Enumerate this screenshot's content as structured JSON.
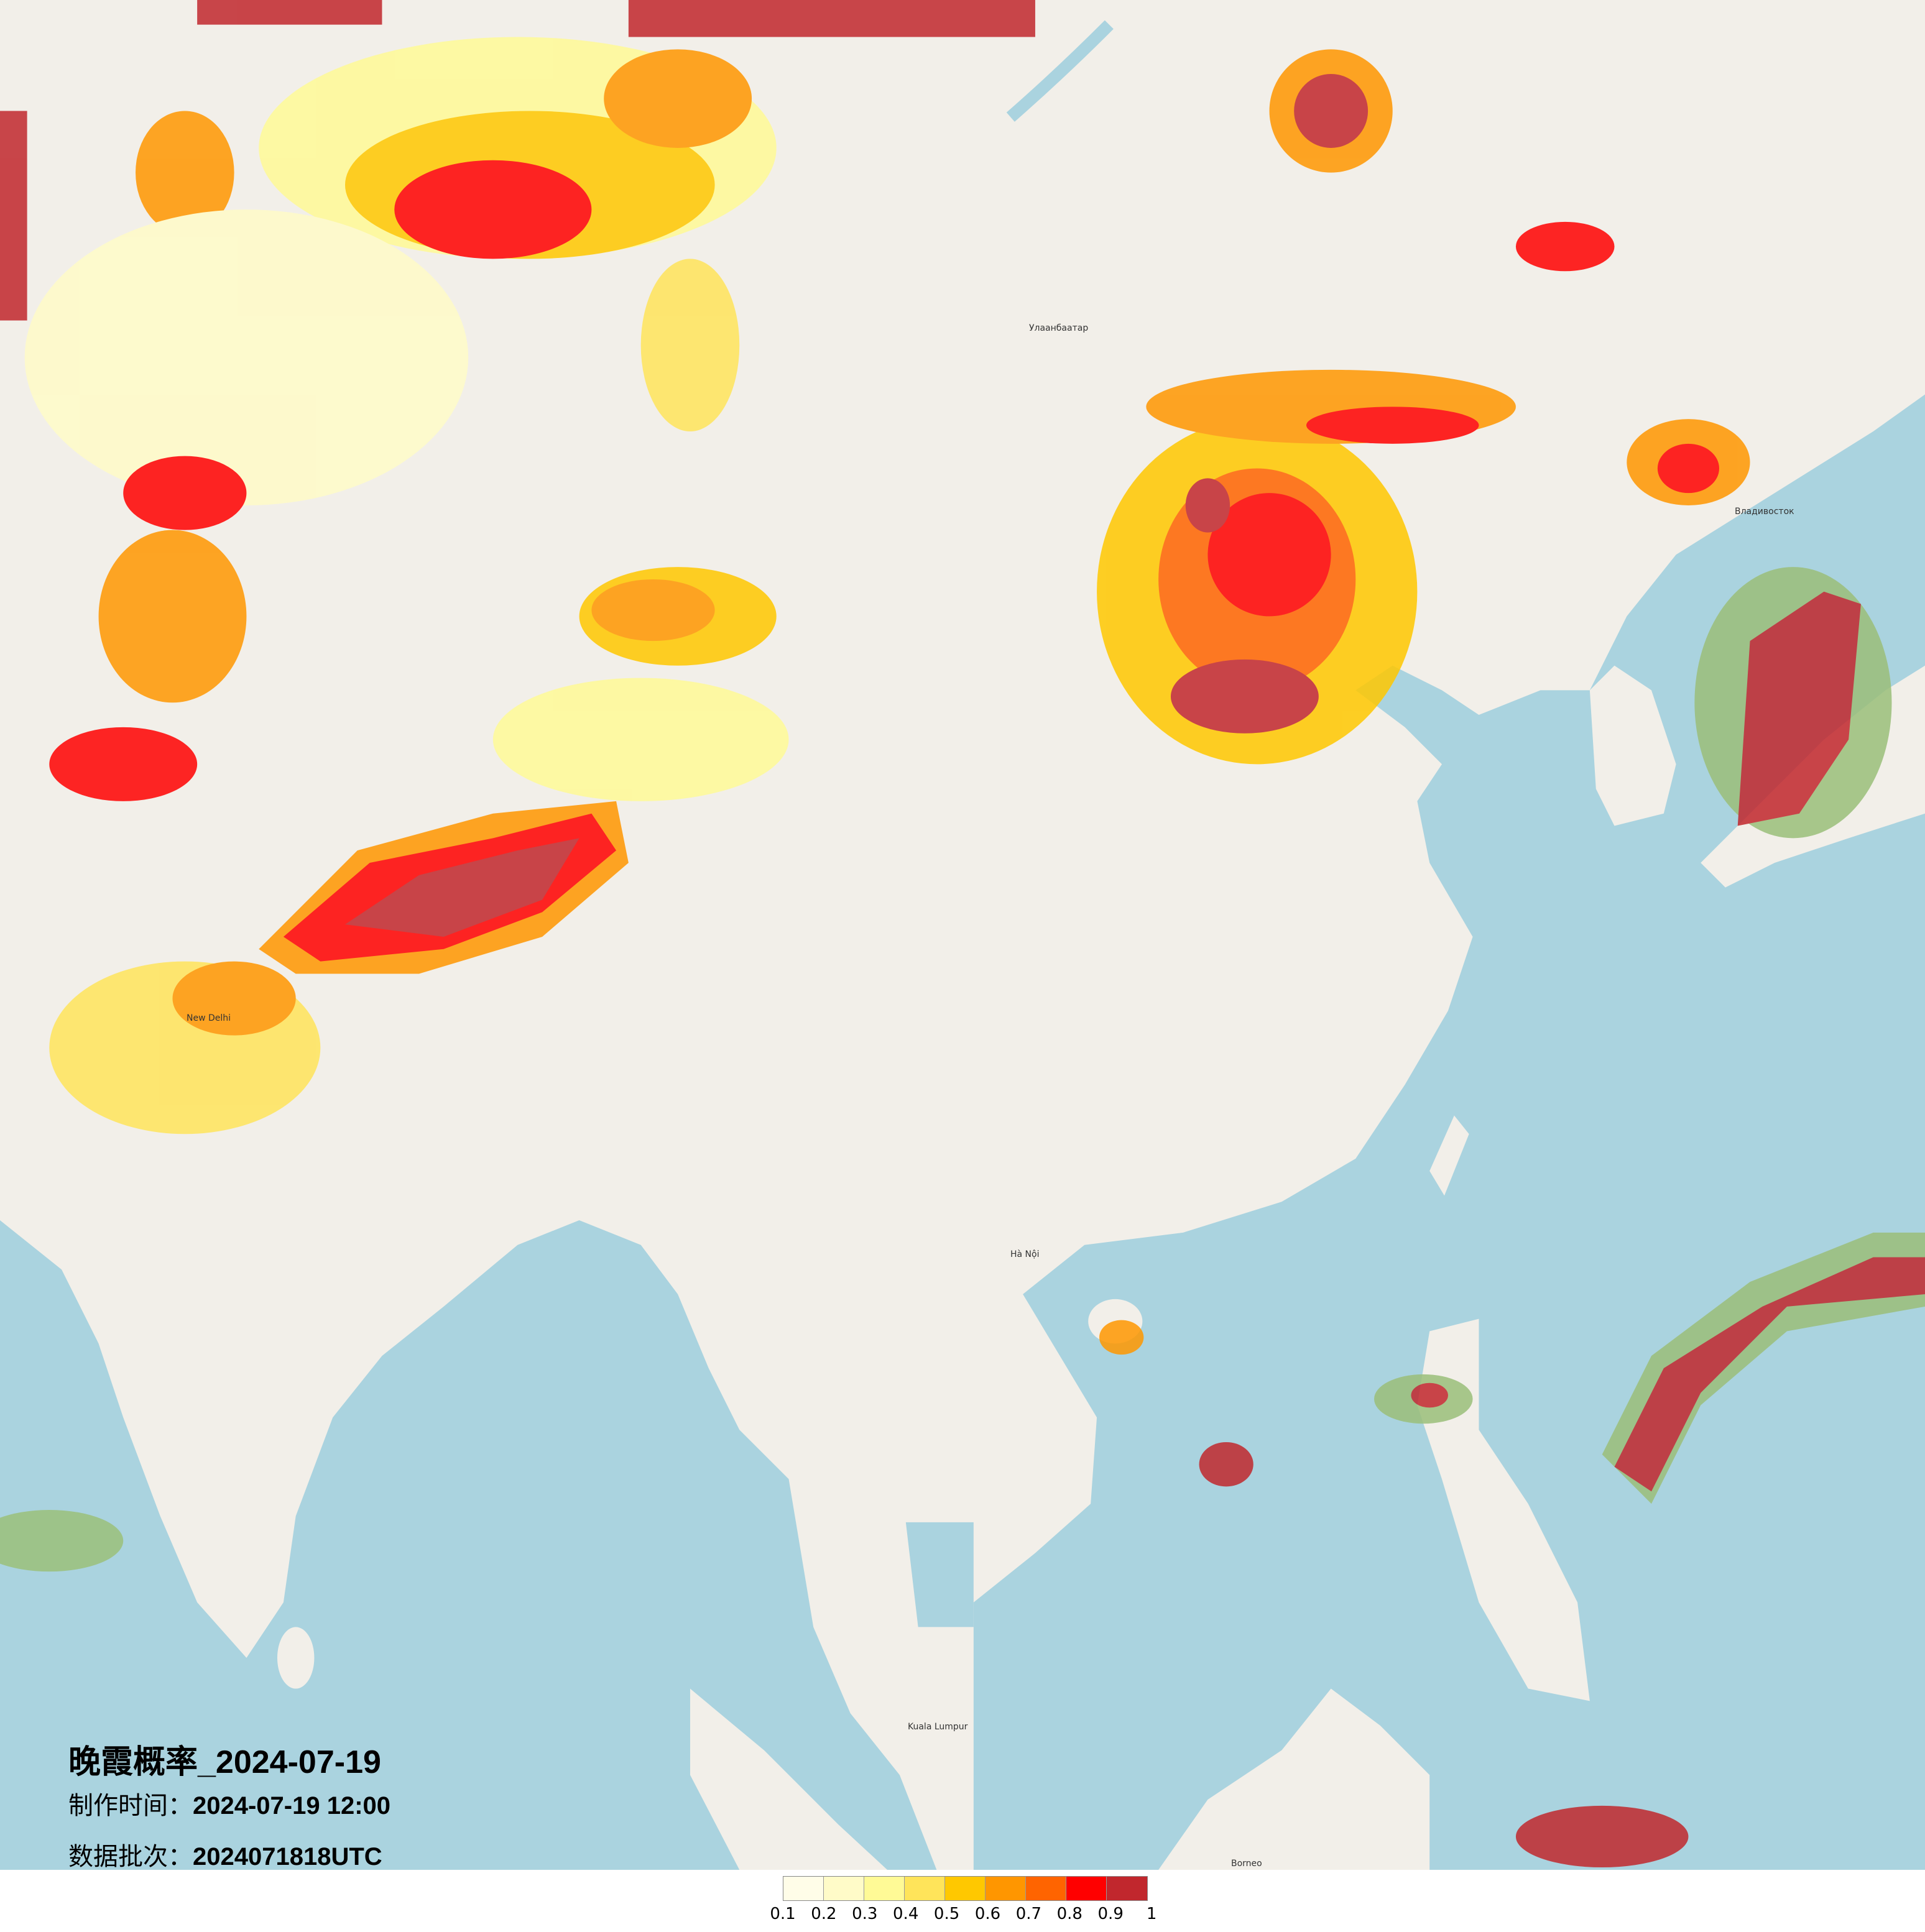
{
  "title": "晚霞概率_2024-07-19",
  "made_time": {
    "label": "制作时间：",
    "value": "2024-07-19 12:00"
  },
  "data_batch": {
    "label": "数据批次：",
    "value": "2024071818UTC"
  },
  "legend": {
    "colors": [
      "#fffde8",
      "#fffbc8",
      "#fffa96",
      "#ffe45a",
      "#ffc800",
      "#ff9600",
      "#ff6400",
      "#ff0000",
      "#c1272d"
    ],
    "labels": [
      "0.1",
      "0.2",
      "0.3",
      "0.4",
      "0.5",
      "0.6",
      "0.7",
      "0.8",
      "0.9",
      "1"
    ]
  },
  "map": {
    "land_color": "#f2efe9",
    "water_color": "#aad3df",
    "cities": [
      "Улаанбаатар",
      "Hà Nội",
      "Kuala Lumpur",
      "Borneo",
      "New Delhi",
      "Владивосток"
    ]
  }
}
